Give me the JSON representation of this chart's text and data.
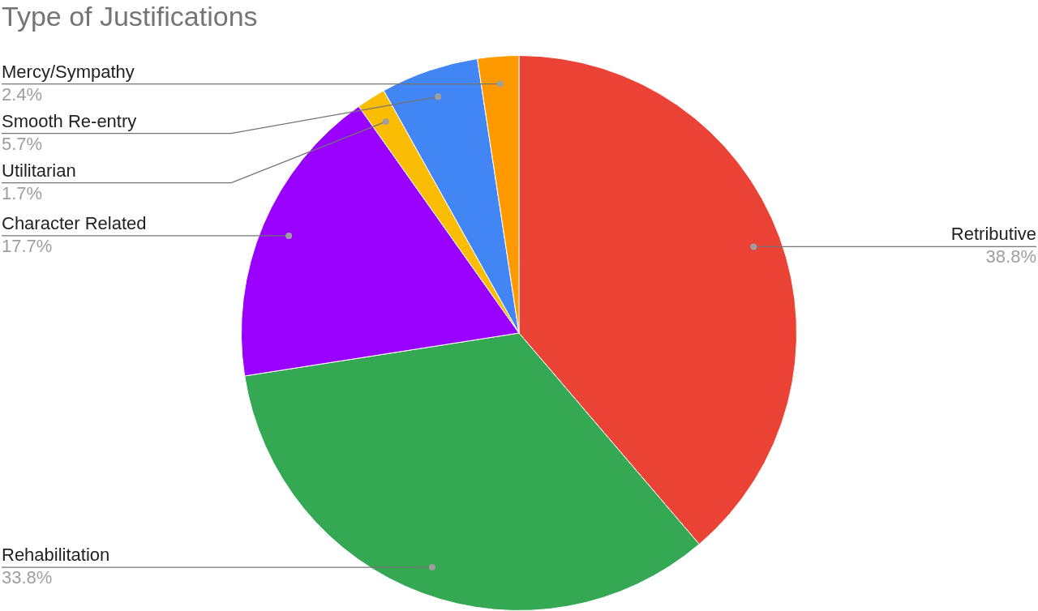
{
  "chart_data": {
    "type": "pie",
    "title": "Type of Justifications",
    "categories": [
      "Retributive",
      "Rehabilitation",
      "Character Related",
      "Utilitarian",
      "Smooth Re-entry",
      "Mercy/Sympathy"
    ],
    "values": [
      38.8,
      33.8,
      17.7,
      1.7,
      5.7,
      2.4
    ],
    "colors": [
      "#ea4335",
      "#34a853",
      "#9900ff",
      "#fbbc04",
      "#4285f4",
      "#ff9900"
    ],
    "value_labels": [
      "38.8%",
      "33.8%",
      "17.7%",
      "1.7%",
      "5.7%",
      "2.4%"
    ],
    "legend": false
  }
}
